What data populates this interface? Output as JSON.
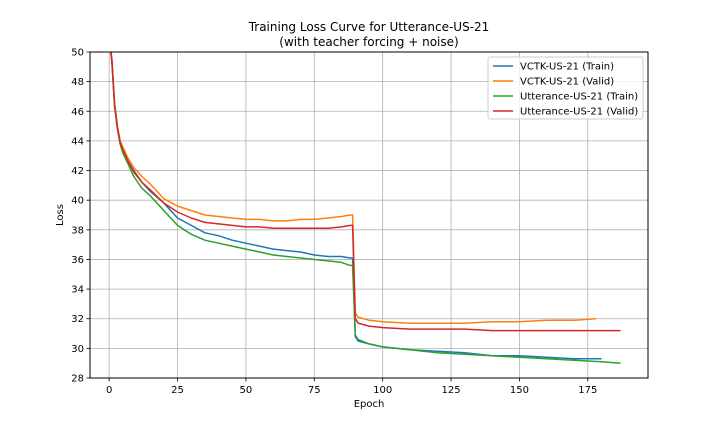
{
  "chart_data": {
    "type": "line",
    "title": "Training Loss Curve for Utterance-US-21",
    "subtitle": "(with teacher forcing + noise)",
    "xlabel": "Epoch",
    "ylabel": "Loss",
    "xlim": [
      -7,
      197
    ],
    "ylim": [
      28,
      50
    ],
    "xticks": [
      0,
      25,
      50,
      75,
      100,
      125,
      150,
      175
    ],
    "yticks": [
      28,
      30,
      32,
      34,
      36,
      38,
      40,
      42,
      44,
      46,
      48,
      50
    ],
    "grid": true,
    "legend_position": "top-right",
    "series": [
      {
        "name": "VCTK-US-21 (Train)",
        "color": "#1f77b4",
        "x": [
          0,
          1,
          2,
          3,
          4,
          5,
          7,
          9,
          12,
          15,
          20,
          25,
          30,
          35,
          40,
          45,
          50,
          55,
          60,
          65,
          70,
          75,
          80,
          85,
          88,
          89,
          90,
          91,
          95,
          100,
          110,
          120,
          130,
          140,
          150,
          160,
          170,
          180
        ],
        "y": [
          51,
          49.5,
          46.5,
          45,
          44,
          43.4,
          42.6,
          42,
          41.2,
          40.6,
          39.8,
          38.8,
          38.3,
          37.8,
          37.6,
          37.3,
          37.1,
          36.9,
          36.7,
          36.6,
          36.5,
          36.3,
          36.2,
          36.2,
          36.1,
          36.1,
          30.8,
          30.5,
          30.3,
          30.1,
          29.9,
          29.8,
          29.7,
          29.5,
          29.5,
          29.4,
          29.3,
          29.3
        ]
      },
      {
        "name": "VCTK-US-21 (Valid)",
        "color": "#ff7f0e",
        "x": [
          0,
          1,
          2,
          3,
          4,
          5,
          7,
          9,
          12,
          15,
          20,
          25,
          30,
          35,
          40,
          45,
          50,
          55,
          60,
          65,
          70,
          75,
          80,
          85,
          88,
          89,
          90,
          91,
          95,
          100,
          110,
          120,
          130,
          140,
          150,
          160,
          170,
          178
        ],
        "y": [
          51,
          49.5,
          46.5,
          45,
          44,
          43.6,
          42.8,
          42.2,
          41.6,
          41.1,
          40.1,
          39.6,
          39.3,
          39.0,
          38.9,
          38.8,
          38.7,
          38.7,
          38.6,
          38.6,
          38.7,
          38.7,
          38.8,
          38.9,
          39.0,
          39.0,
          32.4,
          32.1,
          31.9,
          31.8,
          31.7,
          31.7,
          31.7,
          31.8,
          31.8,
          31.9,
          31.9,
          32.0
        ]
      },
      {
        "name": "Utterance-US-21 (Train)",
        "color": "#2ca02c",
        "x": [
          0,
          1,
          2,
          3,
          4,
          5,
          7,
          9,
          12,
          15,
          20,
          25,
          30,
          35,
          40,
          45,
          50,
          55,
          60,
          65,
          70,
          75,
          80,
          85,
          88,
          89,
          90,
          91,
          95,
          100,
          110,
          120,
          130,
          140,
          150,
          160,
          170,
          180,
          187
        ],
        "y": [
          51,
          49.3,
          46.3,
          44.8,
          43.8,
          43.2,
          42.4,
          41.6,
          40.8,
          40.3,
          39.3,
          38.3,
          37.7,
          37.3,
          37.1,
          36.9,
          36.7,
          36.5,
          36.3,
          36.2,
          36.1,
          36.0,
          35.9,
          35.8,
          35.6,
          35.6,
          30.9,
          30.6,
          30.3,
          30.1,
          29.9,
          29.7,
          29.6,
          29.5,
          29.4,
          29.3,
          29.2,
          29.1,
          29.0
        ]
      },
      {
        "name": "Utterance-US-21 (Valid)",
        "color": "#d62728",
        "x": [
          0,
          1,
          2,
          3,
          4,
          5,
          7,
          9,
          12,
          15,
          20,
          25,
          30,
          35,
          40,
          45,
          50,
          55,
          60,
          65,
          70,
          75,
          80,
          85,
          88,
          89,
          90,
          91,
          95,
          100,
          110,
          120,
          130,
          140,
          150,
          160,
          170,
          180,
          187
        ],
        "y": [
          51,
          49.4,
          46.4,
          44.9,
          43.9,
          43.4,
          42.6,
          41.9,
          41.2,
          40.7,
          39.8,
          39.2,
          38.8,
          38.5,
          38.4,
          38.3,
          38.2,
          38.2,
          38.1,
          38.1,
          38.1,
          38.1,
          38.1,
          38.2,
          38.3,
          38.3,
          32.0,
          31.7,
          31.5,
          31.4,
          31.3,
          31.3,
          31.3,
          31.2,
          31.2,
          31.2,
          31.2,
          31.2,
          31.2
        ]
      }
    ]
  }
}
